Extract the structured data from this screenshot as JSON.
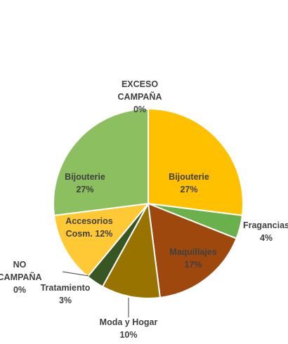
{
  "chart_data": {
    "type": "pie",
    "title": "",
    "legend": "none",
    "slices": [
      {
        "label": "Bijouterie",
        "value": 27,
        "percent": "27%",
        "color": "#FFC000",
        "label_color": "#404040"
      },
      {
        "label": "Fragancias",
        "value": 4,
        "percent": "4%",
        "color": "#6AB04C",
        "label_color": "#404040"
      },
      {
        "label": "Maquillajes",
        "value": 17,
        "percent": "17%",
        "color": "#9E480E",
        "label_color": "#404040"
      },
      {
        "label": "Moda y Hogar",
        "value": 10,
        "percent": "10%",
        "color": "#997300",
        "label_color": "#404040"
      },
      {
        "label": "NO CAMPAÑA",
        "value": 0,
        "percent": "0%",
        "color": "#264478",
        "label_color": "#404040"
      },
      {
        "label": "Tratamiento",
        "value": 3,
        "percent": "3%",
        "color": "#375623",
        "label_color": "#404040"
      },
      {
        "label": "Accesorios Cosm.",
        "value": 12,
        "percent": "12%",
        "color": "#FFC935",
        "label_color": "#404040"
      },
      {
        "label": "Bijouterie",
        "value": 27,
        "percent": "27%",
        "color": "#8CBF5F",
        "label_color": "#404040"
      },
      {
        "label": "EXCESO CAMPAÑA",
        "value": 0,
        "percent": "0%",
        "color": "#A5A5A5",
        "label_color": "#404040"
      }
    ]
  }
}
